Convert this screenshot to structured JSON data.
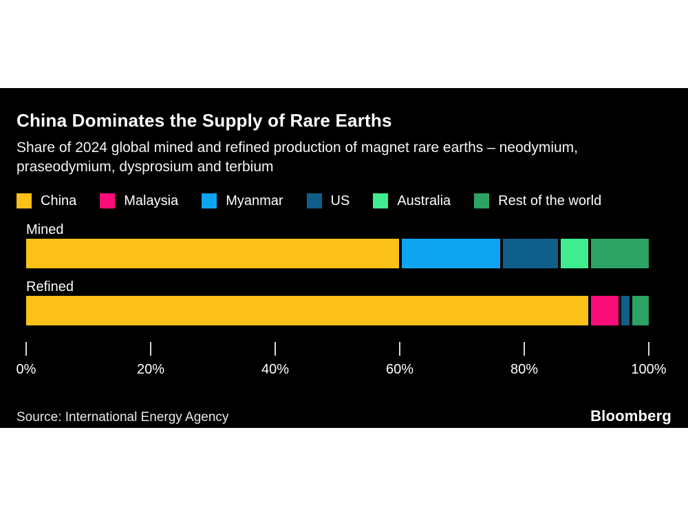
{
  "header": {
    "title": "China Dominates the Supply of Rare Earths",
    "subtitle": "Share of 2024 global mined and refined production of magnet rare earths – neodymium, praseodymium, dysprosium and terbium"
  },
  "colors": {
    "background": "#000000",
    "page": "#ffffff",
    "china": "#fcc118",
    "malaysia": "#fb0d79",
    "myanmar": "#0da5f2",
    "us": "#0f5e8a",
    "australia": "#3fec8f",
    "rest_of_world": "#2ca263"
  },
  "legend": [
    {
      "label": "China",
      "color": "#fcc118"
    },
    {
      "label": "Malaysia",
      "color": "#fb0d79"
    },
    {
      "label": "Myanmar",
      "color": "#0da5f2"
    },
    {
      "label": "US",
      "color": "#0f5e8a"
    },
    {
      "label": "Australia",
      "color": "#3fec8f"
    },
    {
      "label": "Rest of the world",
      "color": "#2ca263"
    }
  ],
  "rows": [
    {
      "label": "Mined",
      "segments": [
        {
          "name": "China",
          "value": 61,
          "color": "#fcc118"
        },
        {
          "name": "Myanmar",
          "value": 16,
          "color": "#0da5f2"
        },
        {
          "name": "US",
          "value": 9,
          "color": "#0f5e8a"
        },
        {
          "name": "Australia",
          "value": 4.5,
          "color": "#3fec8f"
        },
        {
          "name": "Rest of the world",
          "value": 9.5,
          "color": "#2ca263"
        }
      ]
    },
    {
      "label": "Refined",
      "segments": [
        {
          "name": "China",
          "value": 91.5,
          "color": "#fcc118"
        },
        {
          "name": "Malaysia",
          "value": 4.5,
          "color": "#fb0d79"
        },
        {
          "name": "US",
          "value": 1.3,
          "color": "#0f5e8a"
        },
        {
          "name": "Rest of the world",
          "value": 2.7,
          "color": "#2ca263"
        }
      ]
    }
  ],
  "axis": {
    "ticks": [
      {
        "label": "0%",
        "position": 0
      },
      {
        "label": "20%",
        "position": 20
      },
      {
        "label": "40%",
        "position": 40
      },
      {
        "label": "60%",
        "position": 60
      },
      {
        "label": "80%",
        "position": 80
      },
      {
        "label": "100%",
        "position": 100
      }
    ]
  },
  "footer": {
    "source": "Source: International Energy Agency",
    "brand": "Bloomberg"
  },
  "chart_data": {
    "type": "bar",
    "orientation": "horizontal",
    "stacked": true,
    "title": "China Dominates the Supply of Rare Earths",
    "subtitle": "Share of 2024 global mined and refined production of magnet rare earths – neodymium, praseodymium, dysprosium and terbium",
    "categories": [
      "Mined",
      "Refined"
    ],
    "series": [
      {
        "name": "China",
        "values": [
          61,
          91.5
        ],
        "color": "#fcc118"
      },
      {
        "name": "Malaysia",
        "values": [
          0,
          4.5
        ],
        "color": "#fb0d79"
      },
      {
        "name": "Myanmar",
        "values": [
          16,
          0
        ],
        "color": "#0da5f2"
      },
      {
        "name": "US",
        "values": [
          9,
          1.3
        ],
        "color": "#0f5e8a"
      },
      {
        "name": "Australia",
        "values": [
          4.5,
          0
        ],
        "color": "#3fec8f"
      },
      {
        "name": "Rest of the world",
        "values": [
          9.5,
          2.7
        ],
        "color": "#2ca263"
      }
    ],
    "xlabel": "",
    "ylabel": "",
    "unit": "%",
    "xlim": [
      0,
      100
    ],
    "x_ticks": [
      "0%",
      "20%",
      "40%",
      "60%",
      "80%",
      "100%"
    ],
    "grid": false,
    "legend_position": "top",
    "source": "Source: International Energy Agency",
    "brand": "Bloomberg"
  }
}
